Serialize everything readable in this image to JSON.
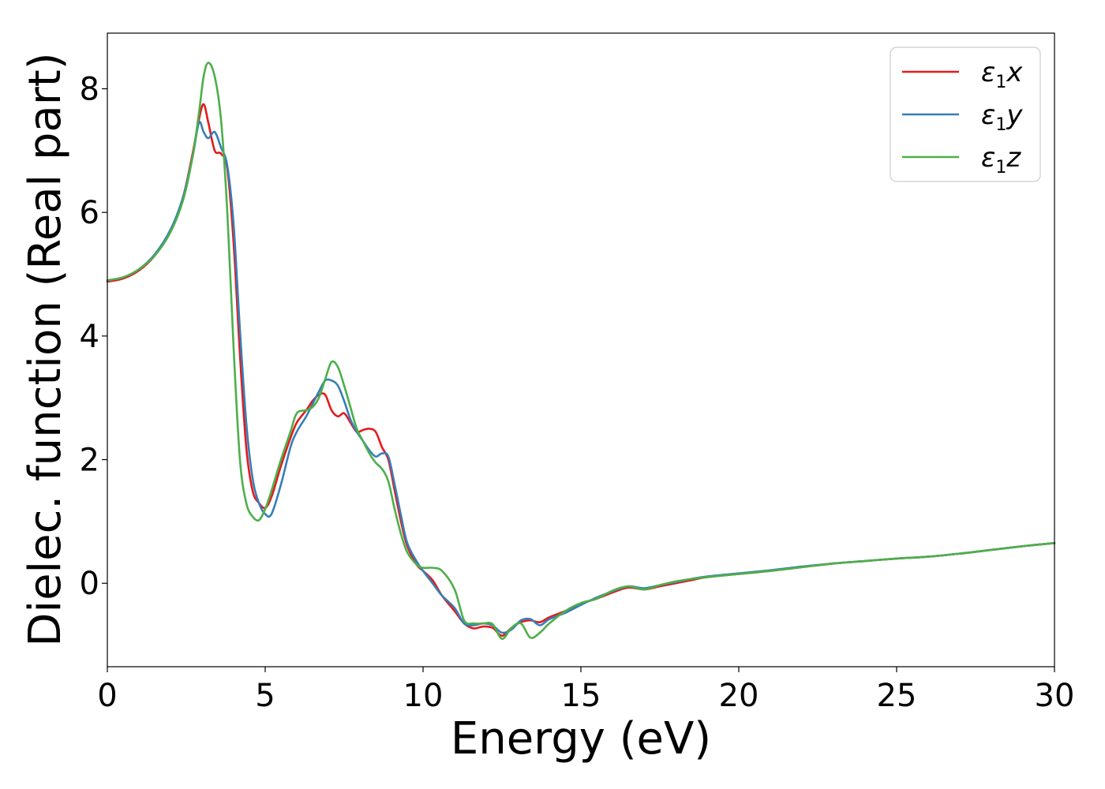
{
  "chart_data": {
    "type": "line",
    "title": "",
    "xlabel": "Energy (eV)",
    "ylabel": "Dielec. function (Real part)",
    "xlim": [
      0,
      30
    ],
    "ylim": [
      -1.35,
      8.9
    ],
    "xticks": [
      0,
      5,
      10,
      15,
      20,
      25,
      30
    ],
    "yticks": [
      0,
      2,
      4,
      6,
      8
    ],
    "grid": false,
    "legend_position": "top-right",
    "series": [
      {
        "name_base": "ε",
        "name_sub": "1",
        "name_suffix": "x",
        "color": "#e41a1c",
        "x": [
          0,
          0.5,
          1,
          1.5,
          2,
          2.4,
          2.7,
          2.9,
          3.05,
          3.2,
          3.4,
          3.6,
          3.8,
          4,
          4.2,
          4.4,
          4.6,
          4.8,
          5.0,
          5.2,
          5.5,
          5.8,
          6.0,
          6.3,
          6.5,
          6.7,
          6.9,
          7.1,
          7.3,
          7.5,
          7.7,
          7.9,
          8.1,
          8.3,
          8.5,
          8.7,
          8.9,
          9.1,
          9.3,
          9.5,
          9.8,
          10,
          10.3,
          10.6,
          11,
          11.3,
          11.6,
          11.9,
          12.2,
          12.5,
          12.8,
          13.1,
          13.4,
          13.7,
          14,
          14.5,
          15,
          15.5,
          16,
          16.5,
          17,
          17.5,
          18,
          18.5,
          19,
          20,
          21,
          22,
          23,
          24,
          25,
          26,
          27,
          28,
          29,
          30
        ],
        "y": [
          4.88,
          4.93,
          5.06,
          5.3,
          5.7,
          6.25,
          6.95,
          7.5,
          7.75,
          7.45,
          7.0,
          6.95,
          6.7,
          5.5,
          3.7,
          2.2,
          1.5,
          1.3,
          1.22,
          1.4,
          1.9,
          2.35,
          2.6,
          2.8,
          2.95,
          3.05,
          3.05,
          2.8,
          2.7,
          2.75,
          2.6,
          2.45,
          2.48,
          2.5,
          2.45,
          2.2,
          2.0,
          1.5,
          1.0,
          0.6,
          0.3,
          0.2,
          0.05,
          -0.2,
          -0.45,
          -0.65,
          -0.73,
          -0.7,
          -0.72,
          -0.85,
          -0.72,
          -0.63,
          -0.6,
          -0.63,
          -0.55,
          -0.45,
          -0.33,
          -0.25,
          -0.15,
          -0.07,
          -0.1,
          -0.05,
          0.0,
          0.05,
          0.1,
          0.15,
          0.2,
          0.26,
          0.32,
          0.36,
          0.4,
          0.43,
          0.48,
          0.54,
          0.6,
          0.65
        ]
      },
      {
        "name_base": "ε",
        "name_sub": "1",
        "name_suffix": "y",
        "color": "#377eb8",
        "x": [
          0,
          0.5,
          1,
          1.5,
          2,
          2.4,
          2.7,
          2.9,
          3.05,
          3.2,
          3.4,
          3.6,
          3.8,
          4,
          4.2,
          4.4,
          4.6,
          4.8,
          5.0,
          5.2,
          5.5,
          5.8,
          6.0,
          6.3,
          6.5,
          6.7,
          6.9,
          7.1,
          7.3,
          7.5,
          7.7,
          7.9,
          8.1,
          8.3,
          8.5,
          8.7,
          8.9,
          9.1,
          9.3,
          9.5,
          9.8,
          10,
          10.3,
          10.6,
          11,
          11.3,
          11.6,
          11.9,
          12.2,
          12.5,
          12.8,
          13.1,
          13.4,
          13.7,
          14,
          14.5,
          15,
          15.5,
          16,
          16.5,
          17,
          17.5,
          18,
          18.5,
          19,
          20,
          21,
          22,
          23,
          24,
          25,
          26,
          27,
          28,
          29,
          30
        ],
        "y": [
          4.9,
          4.95,
          5.08,
          5.32,
          5.72,
          6.25,
          6.9,
          7.45,
          7.3,
          7.2,
          7.3,
          7.05,
          6.75,
          5.8,
          4.1,
          2.6,
          1.7,
          1.3,
          1.12,
          1.12,
          1.6,
          2.2,
          2.45,
          2.7,
          2.9,
          3.1,
          3.28,
          3.28,
          3.2,
          2.95,
          2.65,
          2.45,
          2.3,
          2.15,
          2.05,
          2.1,
          2.05,
          1.6,
          1.1,
          0.65,
          0.35,
          0.2,
          0.0,
          -0.2,
          -0.4,
          -0.65,
          -0.68,
          -0.65,
          -0.68,
          -0.8,
          -0.75,
          -0.6,
          -0.58,
          -0.68,
          -0.58,
          -0.48,
          -0.35,
          -0.23,
          -0.13,
          -0.05,
          -0.08,
          -0.03,
          0.02,
          0.07,
          0.11,
          0.16,
          0.21,
          0.27,
          0.32,
          0.36,
          0.4,
          0.43,
          0.48,
          0.54,
          0.6,
          0.65
        ]
      },
      {
        "name_base": "ε",
        "name_sub": "1",
        "name_suffix": "z",
        "color": "#4daf4a",
        "x": [
          0,
          0.5,
          1,
          1.5,
          2,
          2.4,
          2.7,
          2.9,
          3.05,
          3.2,
          3.4,
          3.6,
          3.8,
          4,
          4.2,
          4.4,
          4.6,
          4.8,
          5.0,
          5.2,
          5.5,
          5.8,
          6.0,
          6.3,
          6.5,
          6.7,
          6.9,
          7.1,
          7.3,
          7.5,
          7.7,
          7.9,
          8.1,
          8.3,
          8.5,
          8.7,
          8.9,
          9.1,
          9.3,
          9.5,
          9.8,
          10,
          10.3,
          10.6,
          11,
          11.3,
          11.6,
          11.9,
          12.2,
          12.5,
          12.8,
          13.1,
          13.4,
          13.7,
          14,
          14.5,
          15,
          15.5,
          16,
          16.5,
          17,
          17.5,
          18,
          18.5,
          19,
          20,
          21,
          22,
          23,
          24,
          25,
          26,
          27,
          28,
          29,
          30
        ],
        "y": [
          4.9,
          4.95,
          5.08,
          5.3,
          5.68,
          6.2,
          6.9,
          7.6,
          8.2,
          8.42,
          8.2,
          7.5,
          6.0,
          3.8,
          2.0,
          1.3,
          1.08,
          1.02,
          1.2,
          1.5,
          2.0,
          2.45,
          2.75,
          2.8,
          2.85,
          3.0,
          3.3,
          3.58,
          3.5,
          3.2,
          2.85,
          2.5,
          2.3,
          2.1,
          1.95,
          1.85,
          1.65,
          1.2,
          0.8,
          0.5,
          0.3,
          0.25,
          0.25,
          0.2,
          -0.1,
          -0.6,
          -0.65,
          -0.65,
          -0.66,
          -0.9,
          -0.72,
          -0.65,
          -0.88,
          -0.8,
          -0.65,
          -0.45,
          -0.32,
          -0.25,
          -0.12,
          -0.05,
          -0.1,
          -0.03,
          0.03,
          0.07,
          0.1,
          0.15,
          0.2,
          0.26,
          0.32,
          0.36,
          0.4,
          0.43,
          0.48,
          0.54,
          0.6,
          0.65
        ]
      }
    ]
  }
}
